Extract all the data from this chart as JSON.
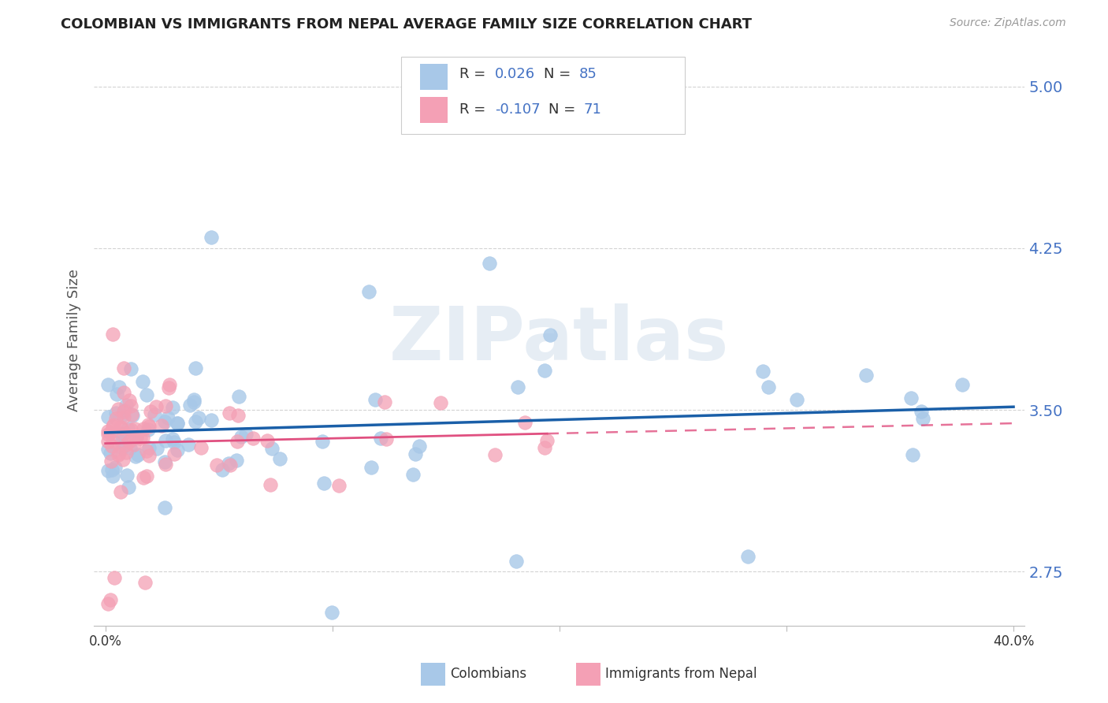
{
  "title": "COLOMBIAN VS IMMIGRANTS FROM NEPAL AVERAGE FAMILY SIZE CORRELATION CHART",
  "source": "Source: ZipAtlas.com",
  "ylabel": "Average Family Size",
  "xlim": [
    0.0,
    0.4
  ],
  "ylim": [
    2.5,
    5.15
  ],
  "yticks": [
    2.75,
    3.5,
    4.25,
    5.0
  ],
  "watermark": "ZIPatlas",
  "legend_blue_r": "0.026",
  "legend_blue_n": "85",
  "legend_pink_r": "-0.107",
  "legend_pink_n": "71",
  "blue_color": "#a8c8e8",
  "pink_color": "#f4a0b5",
  "trendline_blue": "#1a5fa8",
  "trendline_pink": "#e05080",
  "background": "#ffffff",
  "grid_color": "#d3d3d3",
  "right_axis_color": "#4472c4",
  "text_color": "#333333",
  "n_colombians": 85,
  "n_nepal": 71
}
